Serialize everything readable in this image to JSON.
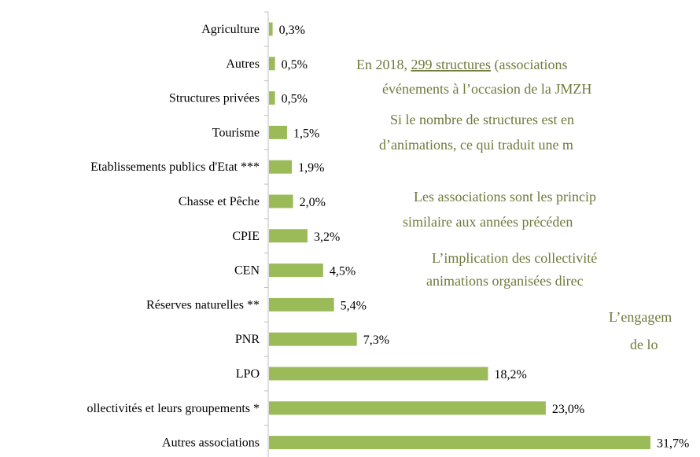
{
  "chart_data": {
    "type": "bar",
    "orientation": "horizontal",
    "color": "#9bbb59",
    "categories": [
      "Agriculture",
      "Autres",
      "Structures privées",
      "Tourisme",
      "Etablissements publics d'Etat ***",
      "Chasse et Pêche",
      "CPIE",
      "CEN",
      "Réserves naturelles **",
      "PNR",
      "LPO",
      "ollectivités et leurs groupements *",
      "Autres associations"
    ],
    "values": [
      0.3,
      0.5,
      0.5,
      1.5,
      1.9,
      2.0,
      3.2,
      4.5,
      5.4,
      7.3,
      18.2,
      23.0,
      31.7
    ],
    "value_labels": [
      "0,3%",
      "0,5%",
      "0,5%",
      "1,5%",
      "1,9%",
      "2,0%",
      "3,2%",
      "4,5%",
      "5,4%",
      "7,3%",
      "18,2%",
      "23,0%",
      "31,7%"
    ]
  },
  "text": {
    "line_0": {
      "before": "En 2018, ",
      "underlined": "299 structures",
      "after": " (associations"
    },
    "lines": [
      "événements à l’occasion de la JMZH",
      "Si le nombre de structures est en",
      "d’animations, ce qui traduit une m",
      "Les associations sont les princip",
      "similaire aux années précéden",
      "L’implication des collectivité",
      "animations organisées direc",
      "L’engagem",
      "de lo"
    ]
  }
}
